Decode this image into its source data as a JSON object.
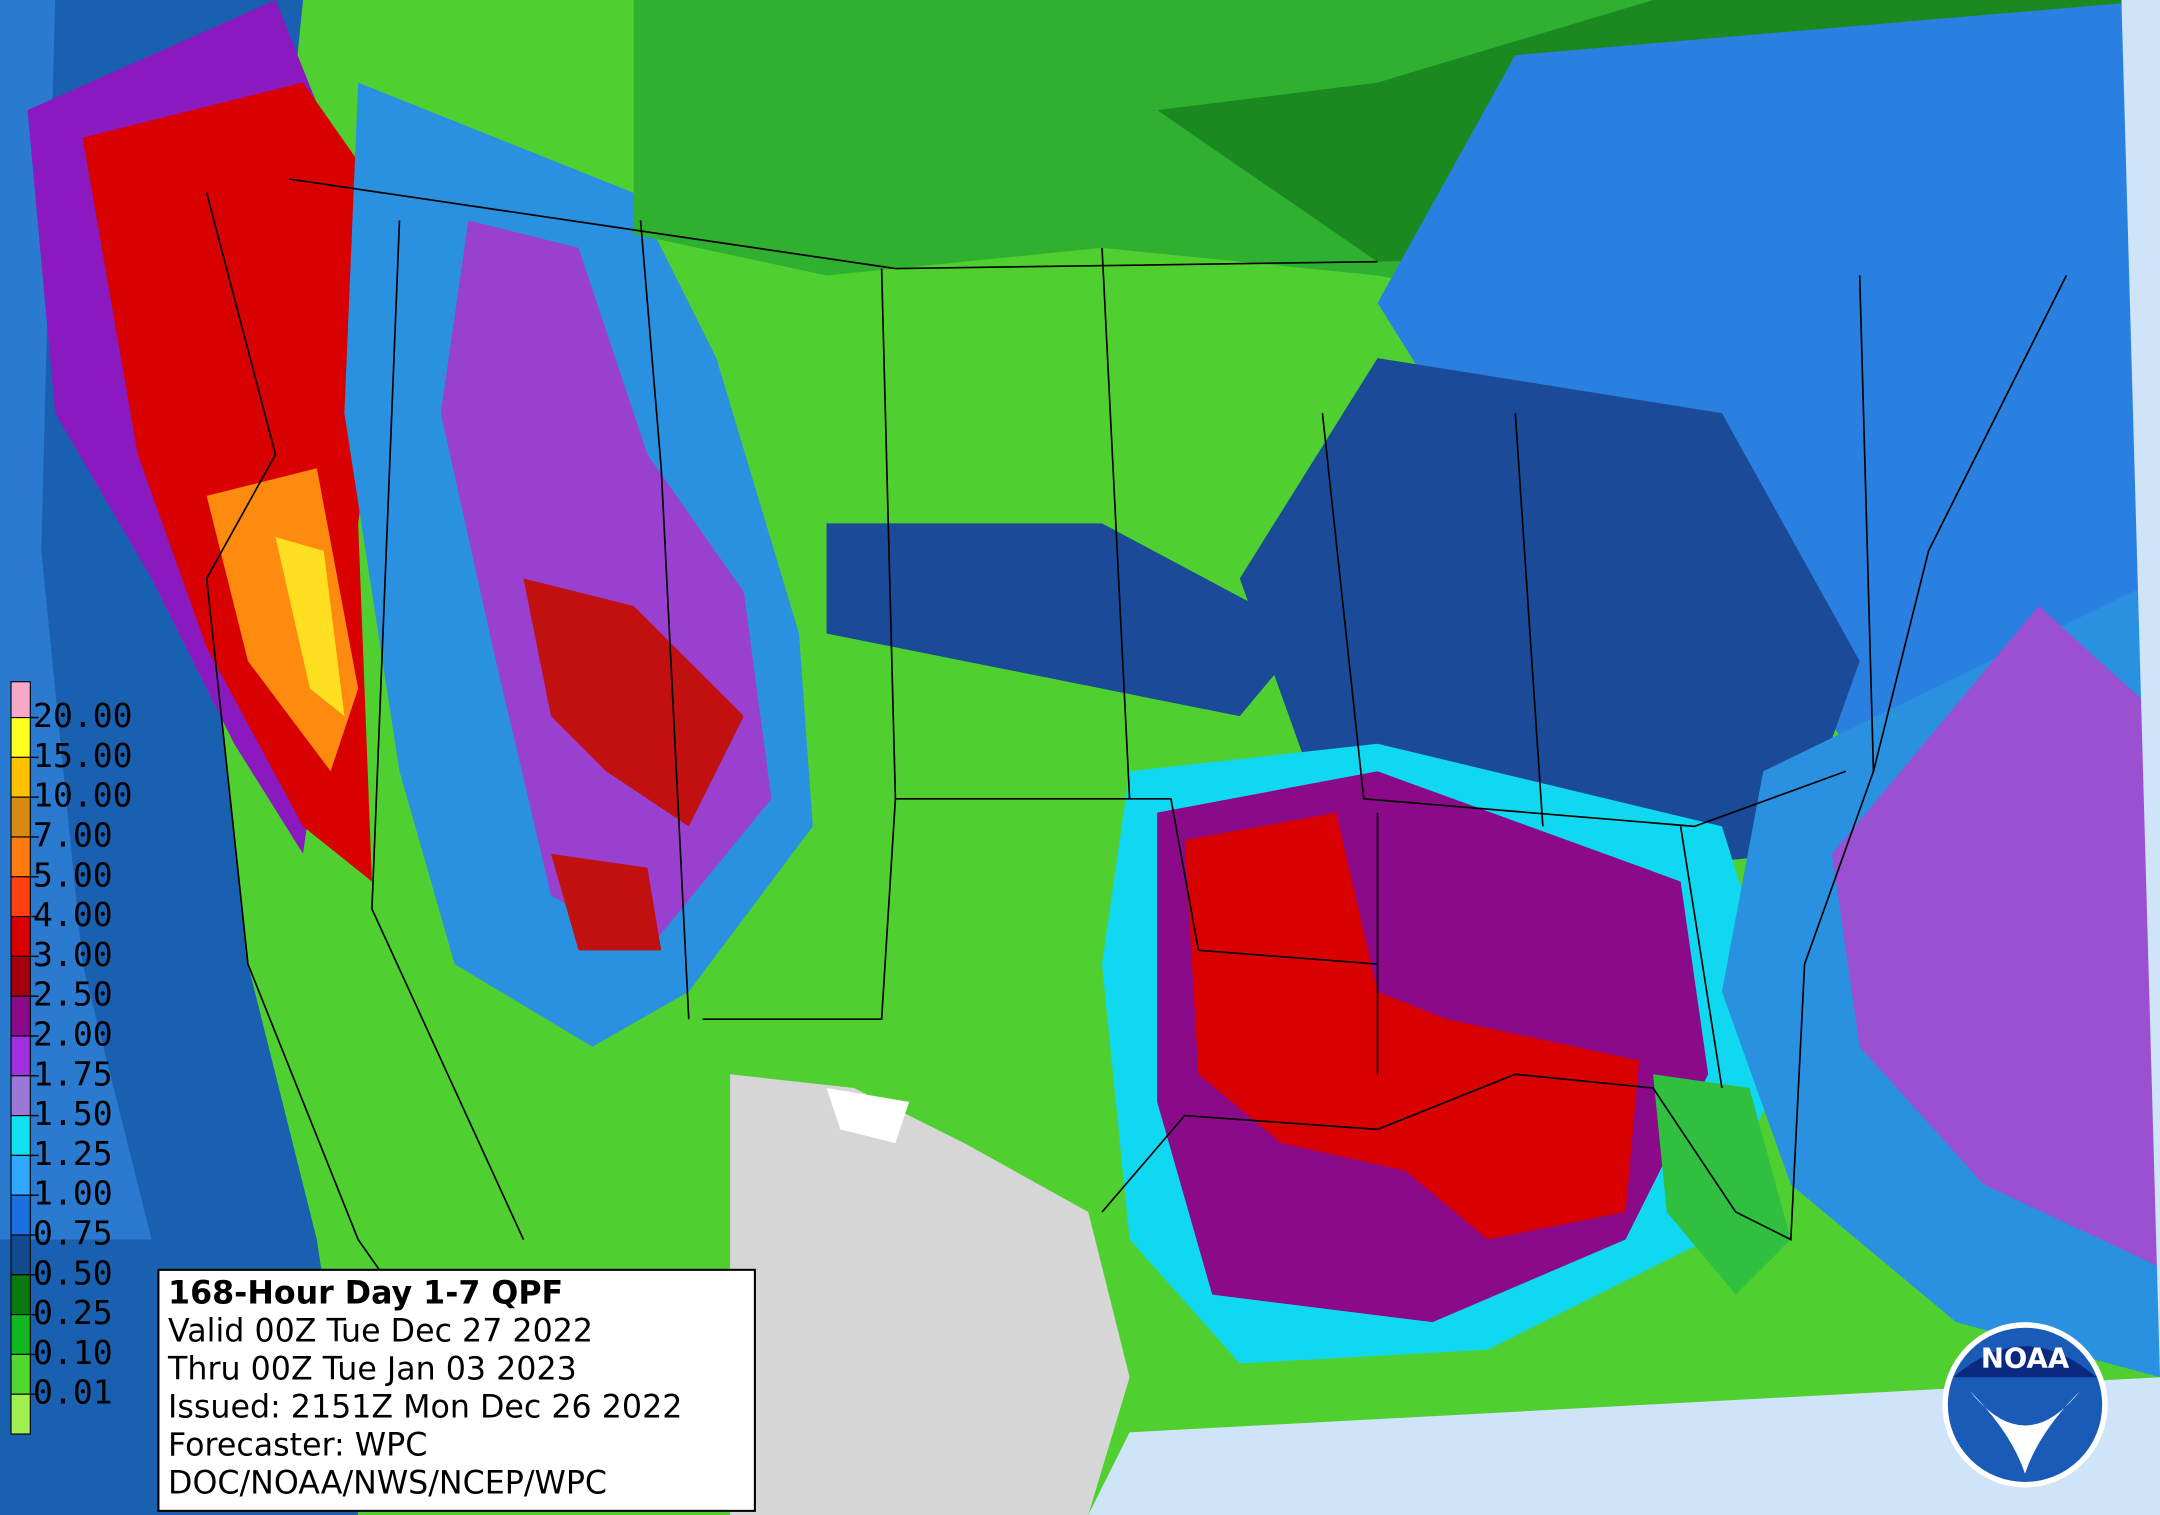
{
  "legend": {
    "labels": [
      "20.00",
      "15.00",
      "10.00",
      "7.00",
      "5.00",
      "4.00",
      "3.00",
      "2.50",
      "2.00",
      "1.75",
      "1.50",
      "1.25",
      "1.00",
      "0.75",
      "0.50",
      "0.25",
      "0.10",
      "0.01"
    ],
    "colors": [
      "#f6a8c8",
      "#ffff20",
      "#ffc000",
      "#d88a10",
      "#ff7a10",
      "#ff4010",
      "#d80000",
      "#a40010",
      "#8a0a8a",
      "#a030e0",
      "#9a78d8",
      "#10e0f0",
      "#30a8ff",
      "#1a70e0",
      "#124a90",
      "#0a7a10",
      "#10b820",
      "#50d830",
      "#a0f050"
    ]
  },
  "info": {
    "lines": [
      "168-Hour Day 1-7 QPF",
      "Valid 00Z Tue Dec 27 2022",
      "Thru 00Z Tue Jan 03 2023",
      "Issued: 2151Z Mon Dec 26 2022",
      "Forecaster: WPC",
      "DOC/NOAA/NWS/NCEP/WPC"
    ]
  },
  "logo": {
    "text": "NOAA"
  }
}
